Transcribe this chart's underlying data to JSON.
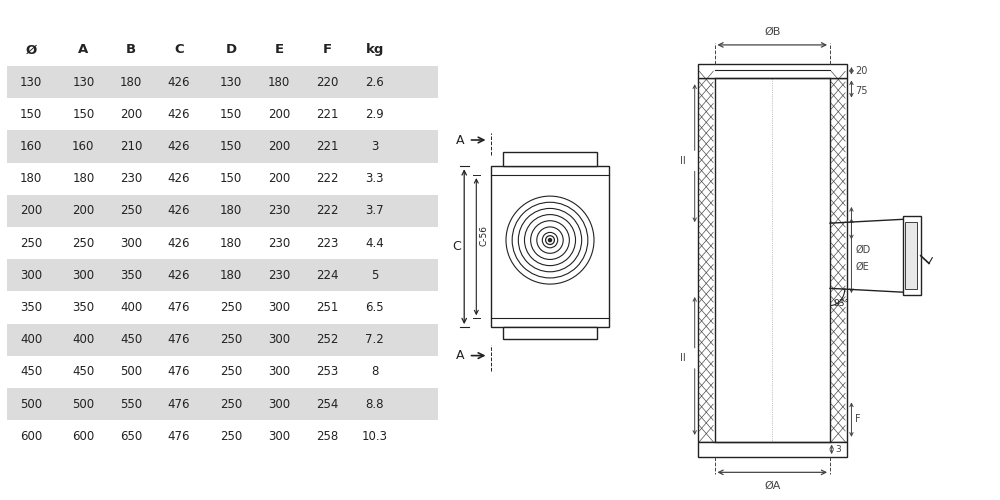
{
  "table_headers": [
    "Ø",
    "A",
    "B",
    "C",
    "D",
    "E",
    "F",
    "kg"
  ],
  "table_data": [
    [
      130,
      130,
      180,
      426,
      130,
      180,
      220,
      "2.6"
    ],
    [
      150,
      150,
      200,
      426,
      150,
      200,
      221,
      "2.9"
    ],
    [
      160,
      160,
      210,
      426,
      150,
      200,
      221,
      "3"
    ],
    [
      180,
      180,
      230,
      426,
      150,
      200,
      222,
      "3.3"
    ],
    [
      200,
      200,
      250,
      426,
      180,
      230,
      222,
      "3.7"
    ],
    [
      250,
      250,
      300,
      426,
      180,
      230,
      223,
      "4.4"
    ],
    [
      300,
      300,
      350,
      426,
      180,
      230,
      224,
      "5"
    ],
    [
      350,
      350,
      400,
      476,
      250,
      300,
      251,
      "6.5"
    ],
    [
      400,
      400,
      450,
      476,
      250,
      300,
      252,
      "7.2"
    ],
    [
      450,
      450,
      500,
      476,
      250,
      300,
      253,
      "8"
    ],
    [
      500,
      500,
      550,
      476,
      250,
      300,
      254,
      "8.8"
    ],
    [
      600,
      600,
      650,
      476,
      250,
      300,
      258,
      "10.3"
    ]
  ],
  "shaded_rows": [
    0,
    2,
    4,
    6,
    8,
    10
  ],
  "row_bg_color": "#dcdcdc",
  "text_color": "#222222",
  "line_color": "#222222",
  "background": "#ffffff",
  "dim_line_color": "#444444"
}
